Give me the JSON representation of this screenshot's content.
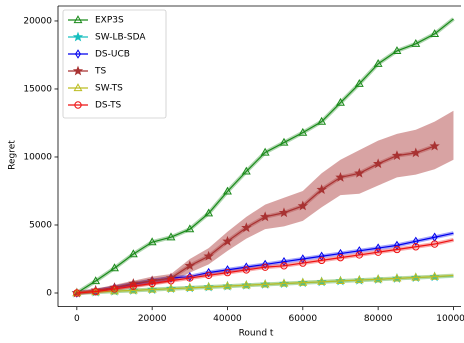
{
  "chart_data": {
    "type": "line",
    "x_label": "Round t",
    "y_label": "Regret",
    "x": [
      0,
      5000,
      10000,
      15000,
      20000,
      25000,
      30000,
      35000,
      40000,
      45000,
      50000,
      55000,
      60000,
      65000,
      70000,
      75000,
      80000,
      85000,
      90000,
      95000,
      100000
    ],
    "xlim": [
      -5000,
      102000
    ],
    "ylim": [
      -1000,
      21100
    ],
    "xticks": [
      0,
      20000,
      40000,
      60000,
      80000,
      100000
    ],
    "yticks": [
      0,
      5000,
      10000,
      15000,
      20000
    ],
    "legend": "upper left",
    "series": [
      {
        "name": "EXP3S",
        "color": "#1a8a1a",
        "marker": "triangle",
        "values": [
          0,
          880,
          1830,
          2860,
          3740,
          4100,
          4690,
          5860,
          7470,
          8940,
          10330,
          11060,
          11790,
          12600,
          13990,
          15380,
          16850,
          17800,
          18320,
          19050,
          20150
        ]
      },
      {
        "name": "SW-LB-SDA",
        "color": "#17bfbf",
        "marker": "star",
        "values": [
          0,
          60,
          130,
          190,
          250,
          320,
          380,
          440,
          500,
          570,
          630,
          690,
          750,
          820,
          880,
          940,
          1000,
          1070,
          1130,
          1190,
          1260
        ]
      },
      {
        "name": "DS-UCB",
        "color": "#0000ee",
        "marker": "diamond",
        "values": [
          0,
          150,
          400,
          650,
          900,
          1100,
          1200,
          1500,
          1700,
          1900,
          2100,
          2300,
          2500,
          2700,
          2900,
          3100,
          3300,
          3500,
          3800,
          4100,
          4400
        ]
      },
      {
        "name": "TS",
        "color": "#a83232",
        "marker": "star",
        "values": [
          0,
          200,
          400,
          700,
          900,
          1100,
          2000,
          2700,
          3800,
          4800,
          5600,
          5900,
          6400,
          7600,
          8500,
          8800,
          9500,
          10100,
          10300,
          10800,
          null
        ],
        "upper": [
          0,
          300,
          600,
          900,
          1200,
          1400,
          2500,
          3300,
          4500,
          5600,
          6500,
          7000,
          7500,
          8800,
          9800,
          10500,
          11200,
          11700,
          12000,
          12600,
          13400
        ],
        "lower": [
          0,
          100,
          200,
          400,
          600,
          800,
          1500,
          2100,
          3100,
          4000,
          4700,
          4900,
          5300,
          6300,
          7200,
          7300,
          7900,
          8500,
          8700,
          9100,
          9800
        ]
      },
      {
        "name": "SW-TS",
        "color": "#bcbd22",
        "marker": "triangle",
        "values": [
          0,
          63,
          126,
          190,
          253,
          316,
          380,
          443,
          506,
          570,
          633,
          696,
          760,
          823,
          886,
          950,
          1013,
          1076,
          1140,
          1203,
          1290
        ]
      },
      {
        "name": "DS-TS",
        "color": "#ee1111",
        "marker": "circle",
        "values": [
          0,
          100,
          300,
          500,
          700,
          900,
          1100,
          1300,
          1500,
          1700,
          1900,
          2000,
          2200,
          2400,
          2600,
          2800,
          3000,
          3200,
          3400,
          3600,
          3900
        ]
      }
    ]
  }
}
